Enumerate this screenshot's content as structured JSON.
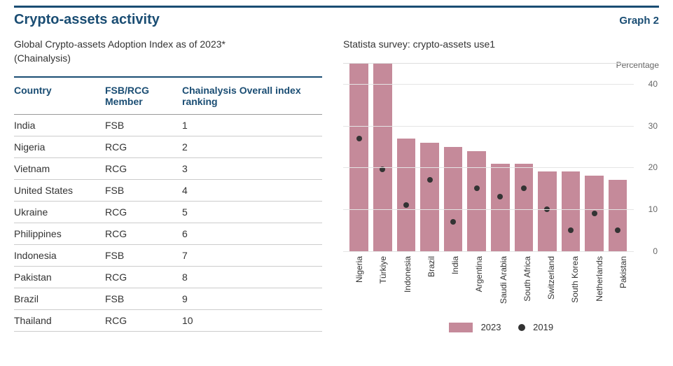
{
  "header": {
    "title": "Crypto-assets activity",
    "graph_label": "Graph 2"
  },
  "left": {
    "subtitle_line1": "Global Crypto-assets Adoption Index as of 2023*",
    "subtitle_line2": "(Chainalysis)",
    "table": {
      "columns": [
        "Country",
        "FSB/RCG Member",
        "Chainalysis Overall index ranking"
      ],
      "rows": [
        [
          "India",
          "FSB",
          "1"
        ],
        [
          "Nigeria",
          "RCG",
          "2"
        ],
        [
          "Vietnam",
          "RCG",
          "3"
        ],
        [
          "United States",
          "FSB",
          "4"
        ],
        [
          "Ukraine",
          "RCG",
          "5"
        ],
        [
          "Philippines",
          "RCG",
          "6"
        ],
        [
          "Indonesia",
          "FSB",
          "7"
        ],
        [
          "Pakistan",
          "RCG",
          "8"
        ],
        [
          "Brazil",
          "FSB",
          "9"
        ],
        [
          "Thailand",
          "RCG",
          "10"
        ]
      ]
    }
  },
  "right": {
    "subtitle": "Statista survey: crypto-assets use1",
    "axis_label": "Percentage",
    "chart": {
      "type": "bar",
      "ylim": [
        0,
        45
      ],
      "yticks": [
        0,
        10,
        20,
        30,
        40
      ],
      "bar_color": "#c58a9a",
      "dot_color": "#333333",
      "grid_color": "#e5e5e5",
      "background": "#ffffff",
      "categories": [
        "Nigeria",
        "Türkiye",
        "Indonesia",
        "Brazil",
        "India",
        "Argentina",
        "Saudi Arabia",
        "South Africa",
        "Switzerland",
        "South Korea",
        "Netherlands",
        "Pakistan"
      ],
      "series_2023": [
        45,
        45,
        27,
        26,
        25,
        24,
        21,
        21,
        19,
        19,
        18,
        17
      ],
      "series_2019": [
        27,
        19.5,
        11,
        17,
        7,
        15,
        13,
        15,
        10,
        5,
        9,
        5
      ],
      "legend": {
        "bar_label": "2023",
        "dot_label": "2019"
      }
    }
  },
  "colors": {
    "brand": "#1a4d73",
    "text": "#333333"
  }
}
